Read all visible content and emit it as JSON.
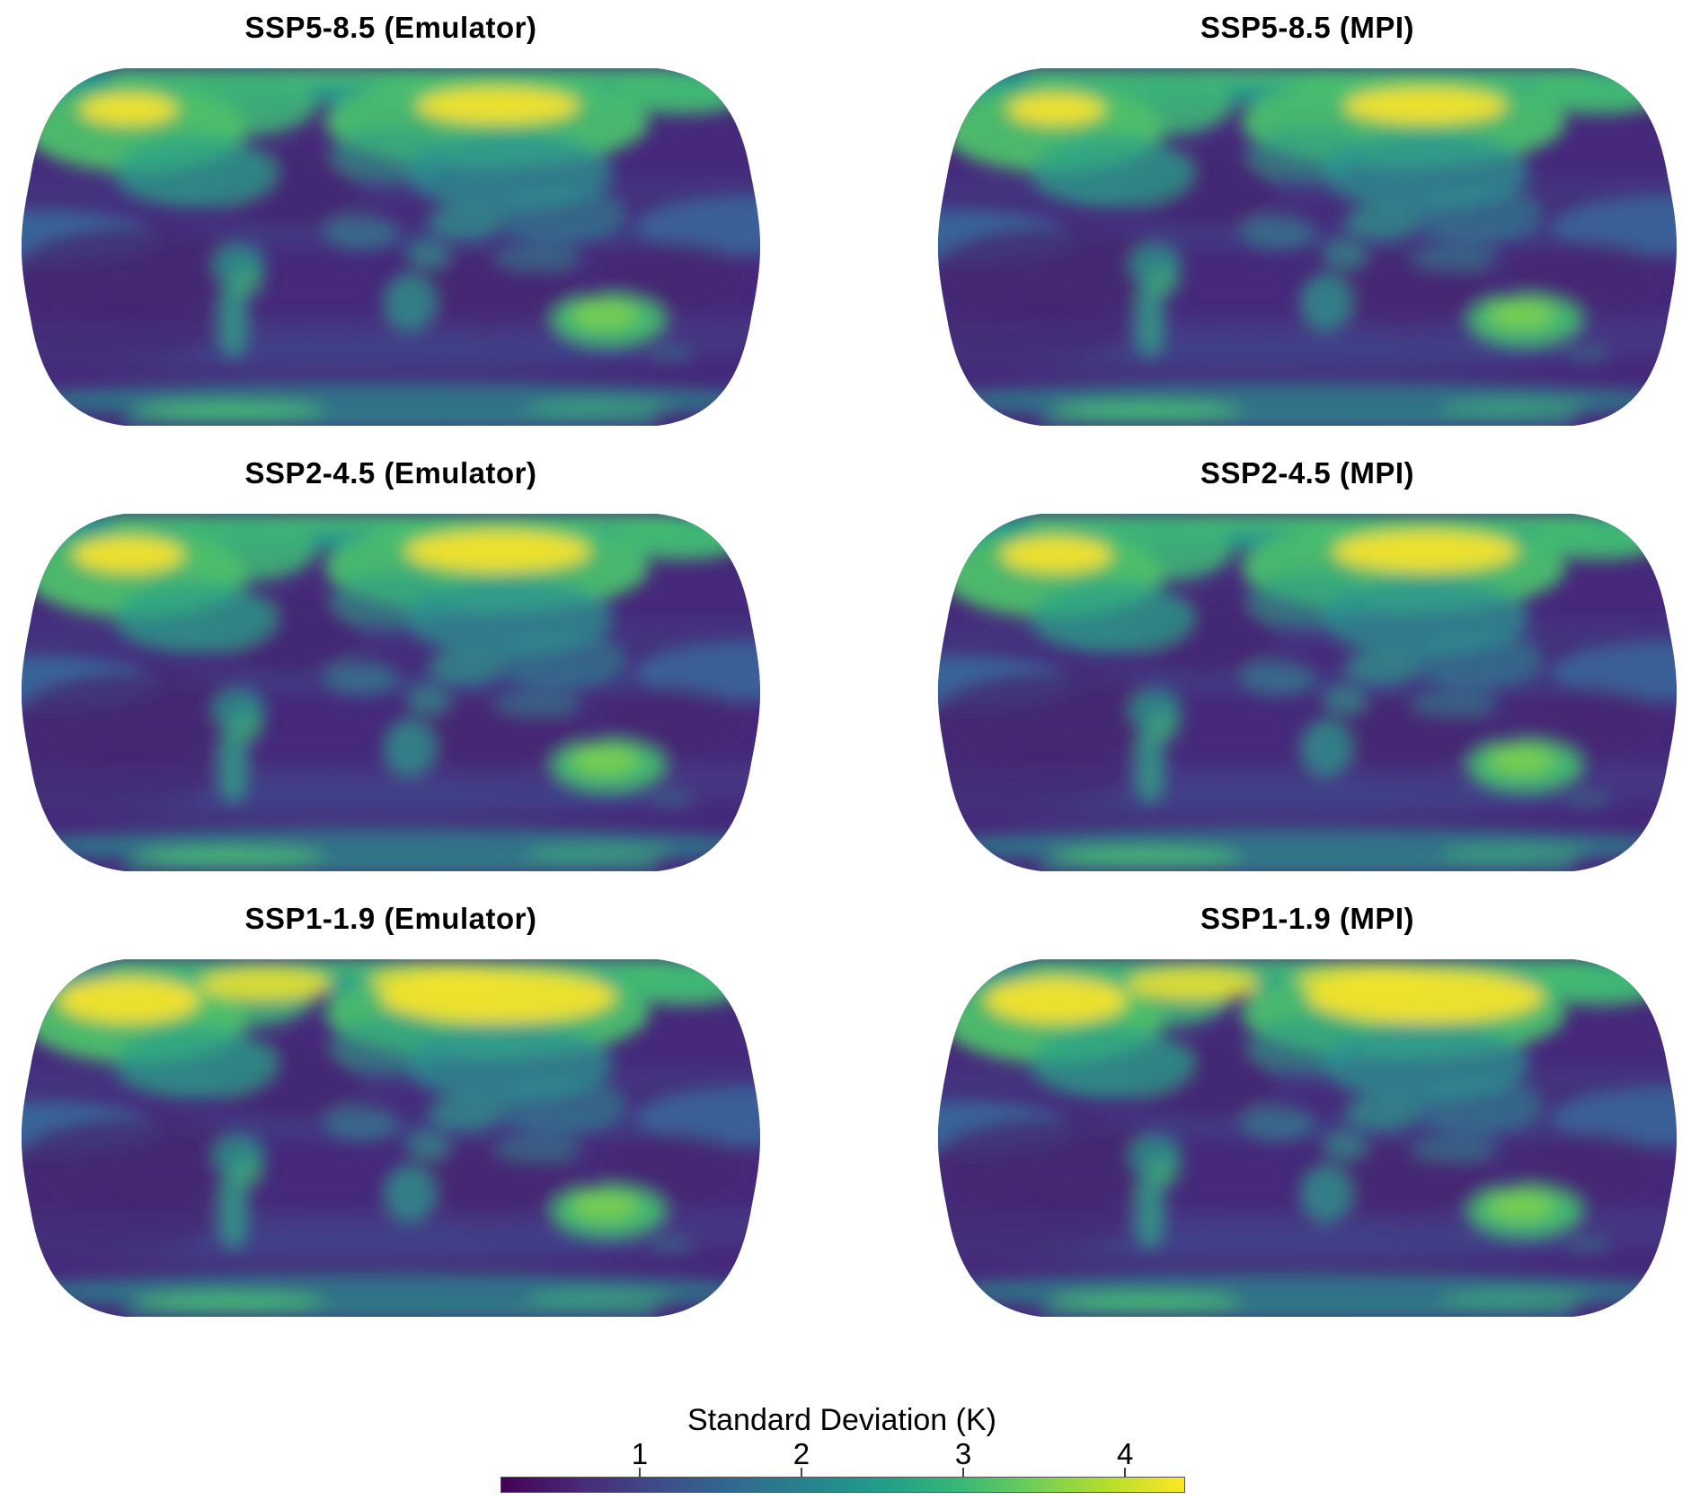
{
  "figure": {
    "panels": [
      {
        "scenario": "SSP5-8.5",
        "source": "Emulator",
        "title": "SSP5-8.5 (Emulator)"
      },
      {
        "scenario": "SSP5-8.5",
        "source": "MPI",
        "title": "SSP5-8.5 (MPI)"
      },
      {
        "scenario": "SSP2-4.5",
        "source": "Emulator",
        "title": "SSP2-4.5 (Emulator)"
      },
      {
        "scenario": "SSP2-4.5",
        "source": "MPI",
        "title": "SSP2-4.5 (MPI)"
      },
      {
        "scenario": "SSP1-1.9",
        "source": "Emulator",
        "title": "SSP1-1.9 (Emulator)"
      },
      {
        "scenario": "SSP1-1.9",
        "source": "MPI",
        "title": "SSP1-1.9 (MPI)"
      }
    ],
    "colorbar": {
      "label": "Standard Deviation (K)",
      "ticks": [
        1,
        2,
        3,
        4
      ],
      "range": [
        0.14,
        4.36
      ],
      "colormap": "viridis",
      "colors": [
        "#440154",
        "#482878",
        "#3e4a89",
        "#31688e",
        "#26828e",
        "#1f9e89",
        "#35b779",
        "#6ece58",
        "#b5de2b",
        "#fde725"
      ]
    }
  },
  "chart_data": {
    "type": "heatmap",
    "variable": "Standard Deviation (K)",
    "projection": "Robinson world map",
    "layout": {
      "rows": [
        "SSP5-8.5",
        "SSP2-4.5",
        "SSP1-1.9"
      ],
      "columns": [
        "Emulator",
        "MPI"
      ]
    },
    "colormap": "viridis",
    "colorbar_range_K": [
      0.14,
      4.36
    ],
    "colorbar_ticks_K": [
      1,
      2,
      3,
      4
    ],
    "regional_values": [
      {
        "region": "Arctic land hotspots (Alaska / NW Canada, Siberia)",
        "approx_K": 4.0
      },
      {
        "region": "Arctic Ocean band along top edge",
        "approx_K": 2.3
      },
      {
        "region": "Canada / Hudson Bay and northern Eurasia",
        "approx_K": 2.0
      },
      {
        "region": "Mid-latitude continents (Europe, Central & East Asia)",
        "approx_K": 1.8
      },
      {
        "region": "South America (Andes strip), Africa, India, SE Asia",
        "approx_K": 1.5
      },
      {
        "region": "Australia interior",
        "approx_K": 2.7
      },
      {
        "region": "Equatorial Pacific band at map edges",
        "approx_K": 1.2
      },
      {
        "region": "Subtropical / tropical oceans (minimum, dark purple)",
        "approx_K": 0.5
      },
      {
        "region": "Southern Ocean bands",
        "approx_K": 0.9
      },
      {
        "region": "Antarctic coastal band near bottom edge",
        "approx_K": 1.8
      }
    ],
    "pattern_note": "All six panels share the same spatial pattern: strong high-northern-latitude amplification (yellow), dark low-variability oceans; each Emulator panel closely matches its MPI counterpart, with brightness of Arctic maxima increasing from SSP5-8.5 (top row) to SSP1-1.9 (bottom row)."
  }
}
